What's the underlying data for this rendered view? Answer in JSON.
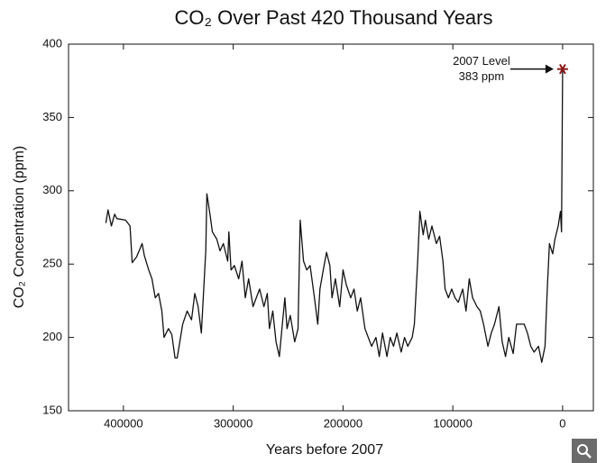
{
  "chart_data": {
    "type": "line",
    "title": "CO₂ Over Past 420 Thousand Years",
    "xlabel": "Years before 2007",
    "ylabel": "CO₂ Concentration (ppm)",
    "x": [
      416000,
      414000,
      411000,
      408000,
      406000,
      398000,
      394000,
      392000,
      388000,
      383000,
      381000,
      377000,
      374000,
      371000,
      368000,
      365000,
      363000,
      359000,
      356000,
      353000,
      351000,
      346000,
      342000,
      338000,
      335000,
      332000,
      329000,
      325000,
      324000,
      321000,
      319000,
      315000,
      312000,
      309000,
      305000,
      304000,
      302000,
      299000,
      295000,
      292000,
      289000,
      286000,
      282000,
      279000,
      276000,
      272000,
      269000,
      267000,
      264000,
      261000,
      258000,
      256000,
      253000,
      251000,
      248000,
      244000,
      241000,
      239000,
      236000,
      233000,
      230000,
      226000,
      223000,
      221000,
      218000,
      215000,
      212000,
      210000,
      207000,
      203000,
      200000,
      197000,
      193000,
      190000,
      187000,
      184000,
      180000,
      177000,
      174000,
      170000,
      167000,
      164000,
      160000,
      157000,
      154000,
      151000,
      147000,
      144000,
      141000,
      137000,
      135000,
      132000,
      130000,
      127000,
      125000,
      122000,
      119000,
      115000,
      112000,
      109000,
      107000,
      104000,
      101000,
      98000,
      95000,
      91000,
      88000,
      85000,
      82000,
      78000,
      75000,
      72000,
      68000,
      65000,
      62000,
      58000,
      55000,
      52000,
      49000,
      45000,
      42000,
      35000,
      32000,
      29000,
      26000,
      22000,
      19000,
      16000,
      14000,
      12000,
      9000,
      7000,
      4000,
      2000,
      1000,
      0
    ],
    "series": [
      {
        "name": "CO2",
        "color": "#111111",
        "values": [
          278,
          287,
          276,
          284,
          281,
          280,
          276,
          251,
          255,
          264,
          256,
          246,
          240,
          227,
          230,
          218,
          200,
          206,
          202,
          186,
          186,
          209,
          218,
          212,
          230,
          221,
          203,
          259,
          298,
          283,
          272,
          267,
          259,
          264,
          252,
          272,
          246,
          249,
          240,
          252,
          227,
          240,
          221,
          227,
          233,
          221,
          230,
          206,
          218,
          197,
          187,
          203,
          227,
          206,
          215,
          197,
          206,
          280,
          252,
          246,
          249,
          227,
          209,
          233,
          246,
          258,
          249,
          227,
          240,
          221,
          246,
          236,
          227,
          233,
          218,
          227,
          206,
          200,
          194,
          200,
          187,
          203,
          187,
          200,
          194,
          203,
          190,
          200,
          194,
          200,
          209,
          252,
          286,
          270,
          280,
          267,
          276,
          264,
          269,
          252,
          233,
          227,
          233,
          227,
          224,
          233,
          218,
          240,
          227,
          221,
          218,
          209,
          194,
          203,
          209,
          221,
          197,
          187,
          200,
          189,
          209,
          209,
          203,
          194,
          190,
          194,
          183,
          194,
          233,
          264,
          257,
          267,
          276,
          286,
          272,
          383
        ]
      }
    ],
    "xlim": [
      450000,
      -28000
    ],
    "ylim": [
      150,
      400
    ],
    "xticks": [
      400000,
      300000,
      200000,
      100000,
      0
    ],
    "yticks": [
      150,
      200,
      250,
      300,
      350,
      400
    ],
    "annotation": {
      "lines": [
        "2007 Level",
        "383 ppm"
      ],
      "x": 0,
      "y": 383,
      "color": "#8b1a1a"
    }
  }
}
